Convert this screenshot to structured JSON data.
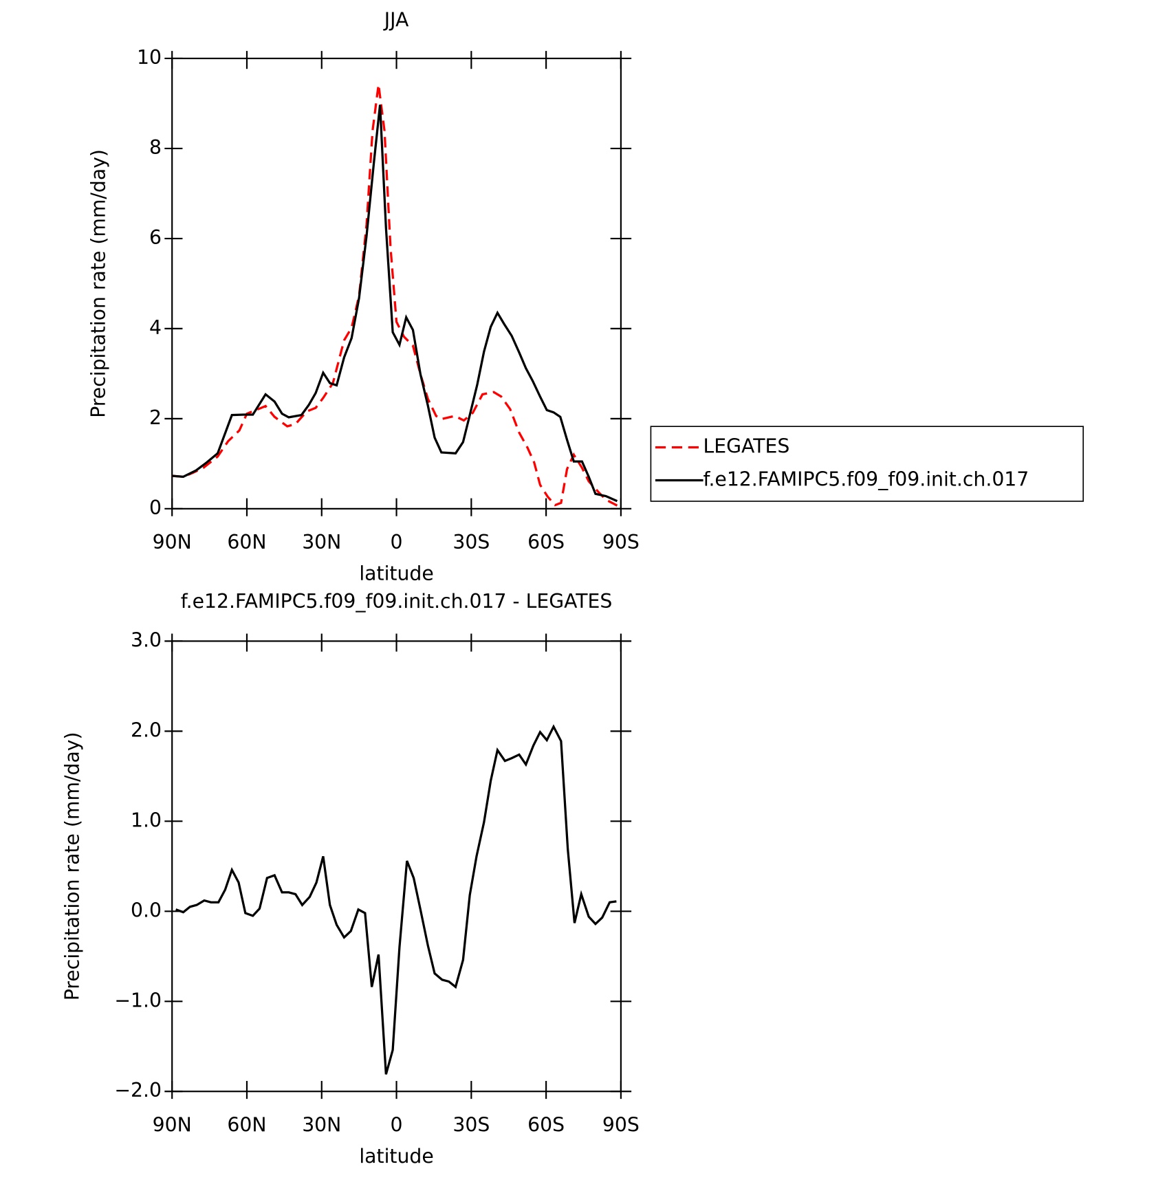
{
  "chart_data": [
    {
      "type": "line",
      "title": "JJA",
      "xlabel": "latitude",
      "ylabel": "Precipitation rate (mm/day)",
      "xlim": [
        90,
        -90
      ],
      "xticks": [
        {
          "value": 90,
          "label": "90N"
        },
        {
          "value": 60,
          "label": "60N"
        },
        {
          "value": 30,
          "label": "30N"
        },
        0,
        {
          "value": -30,
          "label": "30S"
        },
        {
          "value": -60,
          "label": "60S"
        },
        {
          "value": -90,
          "label": "90S"
        }
      ],
      "ylim": [
        0,
        10
      ],
      "yticks": [
        0,
        2,
        4,
        6,
        8,
        10
      ],
      "legend": "outside-right",
      "series": [
        {
          "name": "LEGATES",
          "color": "#ff0000",
          "dash": true,
          "x": [
            90,
            85.5,
            81.6,
            77.4,
            71.7,
            67.5,
            63,
            60,
            55.5,
            52.5,
            48.9,
            43.8,
            40.5,
            36,
            32.4,
            29.4,
            25.5,
            21,
            18,
            15,
            12,
            9.6,
            7.2,
            4.8,
            2.4,
            0,
            -3,
            -6.6,
            -9.6,
            -12.6,
            -15.9,
            -18,
            -23.4,
            -27,
            -30.6,
            -34.5,
            -39,
            -42,
            -45.6,
            -49.2,
            -52.5,
            -55.2,
            -57.6,
            -60.6,
            -63.6,
            -66,
            -68.4,
            -71.1,
            -74.4,
            -77.1,
            -81,
            -84,
            -88.5
          ],
          "values": [
            0.73,
            0.71,
            0.8,
            0.91,
            1.16,
            1.5,
            1.74,
            2.11,
            2.21,
            2.28,
            2.04,
            1.83,
            1.88,
            2.16,
            2.24,
            2.46,
            2.79,
            3.74,
            4.02,
            4.73,
            6.31,
            8.39,
            9.42,
            8.39,
            5.81,
            4.15,
            3.82,
            3.62,
            2.99,
            2.44,
            2.06,
            1.99,
            2.06,
            1.96,
            2.13,
            2.54,
            2.59,
            2.49,
            2.21,
            1.69,
            1.36,
            1.03,
            0.53,
            0.27,
            0.08,
            0.13,
            0.88,
            1.2,
            0.91,
            0.61,
            0.37,
            0.2,
            0.07
          ]
        },
        {
          "name": "f.e12.FAMIPC5.f09_f09.init.ch.017",
          "color": "#000000",
          "dash": false,
          "x": [
            90,
            85.5,
            80.4,
            76.5,
            71.7,
            66,
            61.2,
            57.6,
            52.5,
            48.9,
            45.9,
            43.2,
            38.1,
            35.1,
            32.4,
            29.4,
            26.7,
            24,
            21,
            18,
            15,
            12,
            9,
            6.6,
            4.2,
            1.5,
            -1.2,
            -3.9,
            -6.6,
            -9.6,
            -12.6,
            -15.3,
            -18,
            -23.7,
            -26.7,
            -29.4,
            -32.4,
            -35.1,
            -37.8,
            -40.5,
            -43.2,
            -46.2,
            -49.2,
            -51.9,
            -54.6,
            -57.6,
            -60.3,
            -63,
            -65.7,
            -68.4,
            -71.1,
            -74.4,
            -77.1,
            -79.8,
            -84,
            -88.5
          ],
          "values": [
            0.73,
            0.71,
            0.85,
            1.01,
            1.23,
            2.08,
            2.09,
            2.09,
            2.54,
            2.38,
            2.11,
            2.03,
            2.08,
            2.31,
            2.57,
            3.02,
            2.79,
            2.74,
            3.36,
            3.79,
            4.68,
            6.06,
            7.72,
            8.97,
            6.23,
            3.92,
            3.64,
            4.25,
            3.97,
            2.99,
            2.29,
            1.58,
            1.25,
            1.23,
            1.48,
            2.08,
            2.76,
            3.49,
            4.04,
            4.35,
            4.1,
            3.84,
            3.47,
            3.12,
            2.84,
            2.49,
            2.19,
            2.14,
            2.04,
            1.53,
            1.05,
            1.05,
            0.71,
            0.33,
            0.28,
            0.17
          ]
        }
      ]
    },
    {
      "type": "line",
      "title": "f.e12.FAMIPC5.f09_f09.init.ch.017 - LEGATES",
      "xlabel": "latitude",
      "ylabel": "Precipitation rate (mm/day)",
      "xlim": [
        90,
        -90
      ],
      "xticks": [
        {
          "value": 90,
          "label": "90N"
        },
        {
          "value": 60,
          "label": "60N"
        },
        {
          "value": 30,
          "label": "30N"
        },
        0,
        {
          "value": -30,
          "label": "30S"
        },
        {
          "value": -60,
          "label": "60S"
        },
        {
          "value": -90,
          "label": "90S"
        }
      ],
      "ylim": [
        -2,
        3
      ],
      "yticks": [
        {
          "value": -2,
          "label": "−2.0"
        },
        {
          "value": -1,
          "label": "−1.0"
        },
        {
          "value": 0,
          "label": "0.0"
        },
        {
          "value": 1,
          "label": "1.0"
        },
        {
          "value": 2,
          "label": "2.0"
        },
        {
          "value": 3,
          "label": "3.0"
        }
      ],
      "series": [
        {
          "color": "#000000",
          "dash": false,
          "x": [
            88.5,
            85.5,
            82.8,
            80.1,
            77.1,
            74.4,
            71.4,
            68.7,
            66,
            63.3,
            60.6,
            57.6,
            54.9,
            51.9,
            48.9,
            45.9,
            43.2,
            40.5,
            37.8,
            34.8,
            32.1,
            29.4,
            26.7,
            24,
            21,
            18.3,
            15.3,
            12.6,
            9.9,
            7.2,
            4.2,
            1.5,
            -1.2,
            -4.2,
            -6.9,
            -9.6,
            -12.6,
            -15.3,
            -18.3,
            -21,
            -23.7,
            -26.7,
            -29.4,
            -32.1,
            -35.1,
            -37.8,
            -40.5,
            -43.5,
            -46.2,
            -49.2,
            -51.9,
            -54.9,
            -57.6,
            -60.3,
            -63,
            -66,
            -68.7,
            -71.4,
            -74.1,
            -77.1,
            -79.8,
            -82.5,
            -85.5,
            -88.2
          ],
          "values": [
            0.02,
            -0.01,
            0.05,
            0.07,
            0.12,
            0.1,
            0.1,
            0.24,
            0.46,
            0.32,
            -0.02,
            -0.05,
            0.03,
            0.37,
            0.4,
            0.21,
            0.21,
            0.19,
            0.07,
            0.16,
            0.32,
            0.61,
            0.07,
            -0.15,
            -0.29,
            -0.22,
            0.02,
            -0.02,
            -0.84,
            -0.48,
            -1.81,
            -1.54,
            -0.4,
            0.56,
            0.37,
            0.02,
            -0.38,
            -0.69,
            -0.76,
            -0.78,
            -0.84,
            -0.54,
            0.18,
            0.61,
            0.99,
            1.45,
            1.79,
            1.67,
            1.7,
            1.74,
            1.63,
            1.84,
            1.99,
            1.9,
            2.05,
            1.89,
            0.69,
            -0.13,
            0.19,
            -0.06,
            -0.14,
            -0.07,
            0.1,
            0.11
          ]
        }
      ]
    }
  ]
}
